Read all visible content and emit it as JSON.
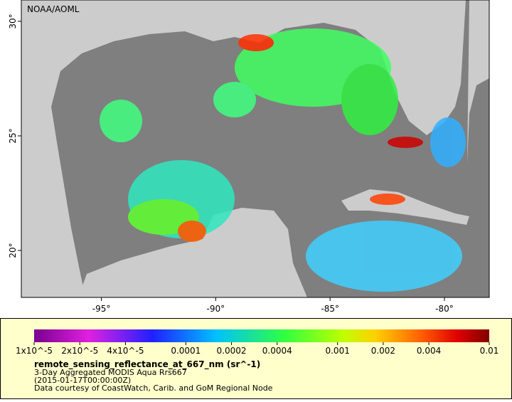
{
  "map": {
    "credit": "NOAA/AOML",
    "xlim": [
      -98.5,
      -78.04
    ],
    "ylim": [
      17.95,
      30.93
    ],
    "x_ticks": [
      {
        "value": -95,
        "label": "-95°"
      },
      {
        "value": -90,
        "label": "-90°"
      },
      {
        "value": -85,
        "label": "-85°"
      },
      {
        "value": -80,
        "label": "-80°"
      }
    ],
    "y_ticks": [
      {
        "value": 20,
        "label": "20°"
      },
      {
        "value": 25,
        "label": "25°"
      },
      {
        "value": 30,
        "label": "30°"
      }
    ]
  },
  "legend": {
    "range": [
      1e-05,
      0.01
    ],
    "log_scale": true,
    "ticks": [
      {
        "value": 1e-05,
        "label": "1x10^-5"
      },
      {
        "value": 2e-05,
        "label": "2x10^-5"
      },
      {
        "value": 4e-05,
        "label": "4x10^-5"
      },
      {
        "value": 0.0001,
        "label": "0.0001"
      },
      {
        "value": 0.0002,
        "label": "0.0002"
      },
      {
        "value": 0.0004,
        "label": "0.0004"
      },
      {
        "value": 0.001,
        "label": "0.001"
      },
      {
        "value": 0.002,
        "label": "0.002"
      },
      {
        "value": 0.004,
        "label": "0.004"
      },
      {
        "value": 0.01,
        "label": "0.01"
      }
    ],
    "variable": "remote_sensing_reflectance_at_667_nm (sr^-1)",
    "lines": [
      "3-Day Aggregated MODIS Aqua Rrs667",
      "(2015-01-17T00:00:00Z)",
      "Data courtesy of CoastWatch, Carib. and GoM Regional Node"
    ]
  }
}
